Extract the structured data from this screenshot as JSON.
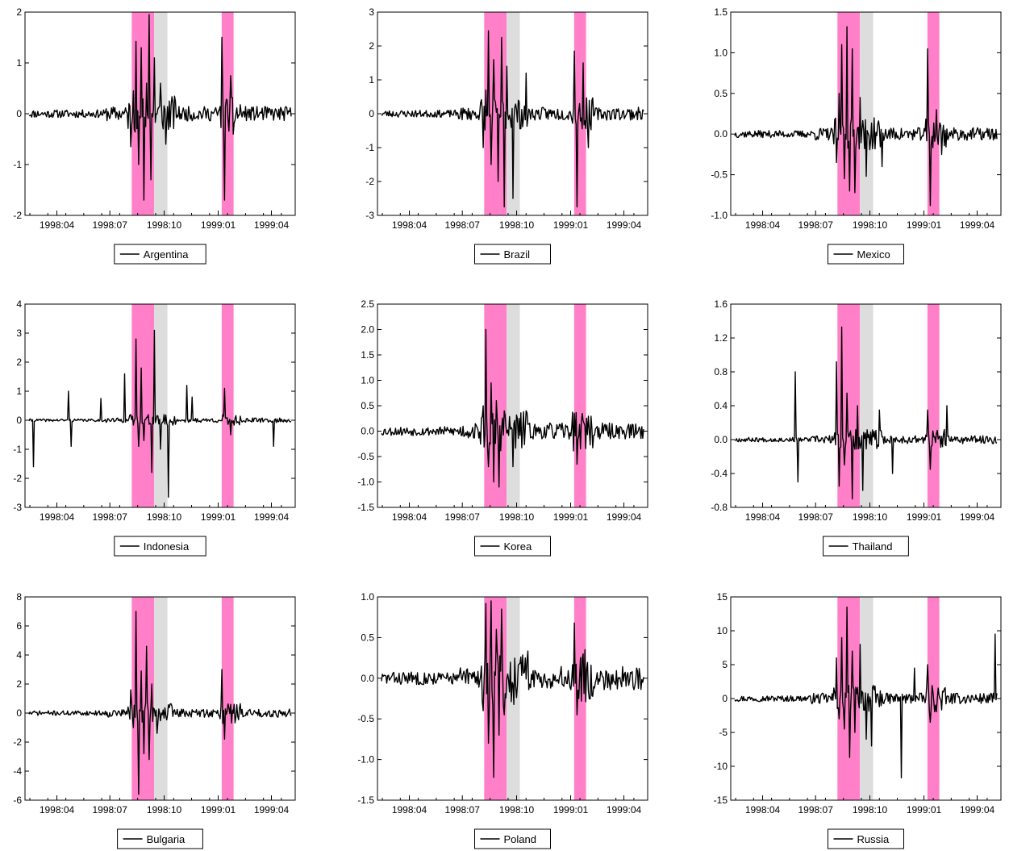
{
  "shading": {
    "pink": "#FF80C8",
    "gray": "#DDDDDD"
  },
  "line_color": "#000000",
  "x_ticks": [
    "1998:04",
    "1998:07",
    "1998:10",
    "1999:01",
    "1999:04"
  ],
  "chart_data": [
    {
      "type": "line",
      "series": [
        {
          "name": "Argentina"
        }
      ],
      "ylim": [
        -2,
        2
      ],
      "yticks": [
        "-2",
        "-1",
        "0",
        "1",
        "2"
      ],
      "seed": 11,
      "amp": 0.09,
      "spikes": [
        [
          0.39,
          -0.65
        ],
        [
          0.4,
          0.45
        ],
        [
          0.41,
          1.42
        ],
        [
          0.42,
          -1.0
        ],
        [
          0.43,
          1.3
        ],
        [
          0.44,
          -1.7
        ],
        [
          0.45,
          0.6
        ],
        [
          0.46,
          1.95
        ],
        [
          0.465,
          -1.3
        ],
        [
          0.48,
          1.1
        ],
        [
          0.5,
          0.6
        ],
        [
          0.52,
          -0.6
        ],
        [
          0.73,
          1.5
        ],
        [
          0.74,
          -1.7
        ],
        [
          0.76,
          0.75
        ],
        [
          0.77,
          -0.4
        ]
      ]
    },
    {
      "type": "line",
      "series": [
        {
          "name": "Brazil"
        }
      ],
      "ylim": [
        -3,
        3
      ],
      "yticks": [
        "-3",
        "-2",
        "-1",
        "0",
        "1",
        "2",
        "3"
      ],
      "seed": 23,
      "amp": 0.12,
      "spikes": [
        [
          0.39,
          -1.0
        ],
        [
          0.4,
          0.7
        ],
        [
          0.41,
          2.45
        ],
        [
          0.42,
          -1.5
        ],
        [
          0.43,
          1.6
        ],
        [
          0.445,
          -2.0
        ],
        [
          0.46,
          2.25
        ],
        [
          0.47,
          -2.75
        ],
        [
          0.48,
          1.4
        ],
        [
          0.5,
          -2.5
        ],
        [
          0.55,
          1.2
        ],
        [
          0.73,
          1.85
        ],
        [
          0.74,
          -2.75
        ],
        [
          0.76,
          1.5
        ],
        [
          0.78,
          -1.0
        ]
      ]
    },
    {
      "type": "line",
      "series": [
        {
          "name": "Mexico"
        }
      ],
      "ylim": [
        -1,
        1.5
      ],
      "yticks": [
        "-1.0",
        "-0.5",
        "0.0",
        "0.5",
        "1.0",
        "1.5"
      ],
      "seed": 37,
      "amp": 0.05,
      "spikes": [
        [
          0.39,
          -0.35
        ],
        [
          0.4,
          0.5
        ],
        [
          0.41,
          1.1
        ],
        [
          0.42,
          -0.55
        ],
        [
          0.43,
          1.32
        ],
        [
          0.44,
          -0.7
        ],
        [
          0.45,
          1.05
        ],
        [
          0.46,
          -0.72
        ],
        [
          0.48,
          0.45
        ],
        [
          0.5,
          -0.52
        ],
        [
          0.56,
          -0.4
        ],
        [
          0.73,
          1.05
        ],
        [
          0.74,
          -0.88
        ],
        [
          0.76,
          0.3
        ],
        [
          0.78,
          -0.25
        ]
      ]
    },
    {
      "type": "line",
      "series": [
        {
          "name": "Indonesia"
        }
      ],
      "ylim": [
        -3,
        4
      ],
      "yticks": [
        "-3",
        "-2",
        "-1",
        "0",
        "1",
        "2",
        "3",
        "4"
      ],
      "seed": 41,
      "amp": 0.05,
      "spikes": [
        [
          0.03,
          -1.6
        ],
        [
          0.16,
          1.0
        ],
        [
          0.17,
          -0.9
        ],
        [
          0.28,
          0.75
        ],
        [
          0.37,
          1.6
        ],
        [
          0.41,
          2.8
        ],
        [
          0.42,
          -0.9
        ],
        [
          0.43,
          1.8
        ],
        [
          0.44,
          -0.7
        ],
        [
          0.47,
          -1.8
        ],
        [
          0.48,
          3.1
        ],
        [
          0.5,
          -1.0
        ],
        [
          0.53,
          -2.65
        ],
        [
          0.6,
          1.2
        ],
        [
          0.62,
          0.8
        ],
        [
          0.74,
          1.1
        ],
        [
          0.76,
          -0.5
        ],
        [
          0.92,
          -0.9
        ]
      ]
    },
    {
      "type": "line",
      "series": [
        {
          "name": "Korea"
        }
      ],
      "ylim": [
        -1.5,
        2.5
      ],
      "yticks": [
        "-1.5",
        "-1.0",
        "-0.5",
        "0.0",
        "0.5",
        "1.0",
        "1.5",
        "2.0",
        "2.5"
      ],
      "seed": 53,
      "amp": 0.1,
      "spikes": [
        [
          0.39,
          0.5
        ],
        [
          0.4,
          2.0
        ],
        [
          0.41,
          -0.7
        ],
        [
          0.42,
          0.95
        ],
        [
          0.43,
          -1.0
        ],
        [
          0.44,
          0.6
        ],
        [
          0.45,
          -1.1
        ],
        [
          0.47,
          0.4
        ],
        [
          0.5,
          -0.7
        ],
        [
          0.55,
          0.4
        ],
        [
          0.73,
          0.35
        ],
        [
          0.74,
          -0.65
        ],
        [
          0.76,
          0.2
        ]
      ]
    },
    {
      "type": "line",
      "series": [
        {
          "name": "Thailand"
        }
      ],
      "ylim": [
        -0.8,
        1.6
      ],
      "yticks": [
        "-0.8",
        "-0.4",
        "0.0",
        "0.4",
        "0.8",
        "1.2",
        "1.6"
      ],
      "seed": 67,
      "amp": 0.03,
      "spikes": [
        [
          0.24,
          0.8
        ],
        [
          0.25,
          -0.5
        ],
        [
          0.39,
          0.92
        ],
        [
          0.4,
          -0.55
        ],
        [
          0.41,
          1.33
        ],
        [
          0.42,
          -0.3
        ],
        [
          0.43,
          0.55
        ],
        [
          0.45,
          -0.7
        ],
        [
          0.47,
          0.4
        ],
        [
          0.49,
          -0.6
        ],
        [
          0.55,
          0.35
        ],
        [
          0.6,
          -0.4
        ],
        [
          0.73,
          0.35
        ],
        [
          0.74,
          -0.35
        ],
        [
          0.8,
          0.4
        ]
      ]
    },
    {
      "type": "line",
      "series": [
        {
          "name": "Bulgaria"
        }
      ],
      "ylim": [
        -6,
        8
      ],
      "yticks": [
        "-6",
        "-4",
        "-2",
        "0",
        "2",
        "4",
        "6",
        "8"
      ],
      "seed": 71,
      "amp": 0.18,
      "spikes": [
        [
          0.39,
          1.6
        ],
        [
          0.4,
          -1.0
        ],
        [
          0.41,
          7.0
        ],
        [
          0.42,
          -5.6
        ],
        [
          0.43,
          2.9
        ],
        [
          0.44,
          -2.8
        ],
        [
          0.45,
          4.6
        ],
        [
          0.46,
          -3.2
        ],
        [
          0.47,
          2.0
        ],
        [
          0.49,
          -1.4
        ],
        [
          0.73,
          3.0
        ],
        [
          0.74,
          -1.8
        ],
        [
          0.76,
          0.6
        ]
      ]
    },
    {
      "type": "line",
      "series": [
        {
          "name": "Poland"
        }
      ],
      "ylim": [
        -1.5,
        1
      ],
      "yticks": [
        "-1.5",
        "-1.0",
        "-0.5",
        "0.0",
        "0.5",
        "1.0"
      ],
      "seed": 83,
      "amp": 0.09,
      "spikes": [
        [
          0.39,
          -0.4
        ],
        [
          0.4,
          0.92
        ],
        [
          0.41,
          -0.8
        ],
        [
          0.42,
          0.95
        ],
        [
          0.43,
          -1.22
        ],
        [
          0.44,
          0.6
        ],
        [
          0.45,
          -0.7
        ],
        [
          0.46,
          0.85
        ],
        [
          0.47,
          -0.45
        ],
        [
          0.73,
          0.68
        ],
        [
          0.74,
          -0.45
        ],
        [
          0.76,
          0.3
        ]
      ]
    },
    {
      "type": "line",
      "series": [
        {
          "name": "Russia"
        }
      ],
      "ylim": [
        -15,
        15
      ],
      "yticks": [
        "-15",
        "-10",
        "-5",
        "0",
        "5",
        "10",
        "15"
      ],
      "seed": 97,
      "amp": 0.5,
      "spikes": [
        [
          0.39,
          6.0
        ],
        [
          0.4,
          -3.0
        ],
        [
          0.41,
          9.0
        ],
        [
          0.42,
          -4.5
        ],
        [
          0.43,
          13.5
        ],
        [
          0.44,
          -8.7
        ],
        [
          0.45,
          7.0
        ],
        [
          0.46,
          -5.0
        ],
        [
          0.48,
          8.0
        ],
        [
          0.5,
          -6.0
        ],
        [
          0.52,
          -7.0
        ],
        [
          0.63,
          -11.7
        ],
        [
          0.68,
          4.5
        ],
        [
          0.73,
          5.0
        ],
        [
          0.74,
          -3.5
        ],
        [
          0.98,
          9.5
        ],
        [
          0.99,
          -3.0
        ]
      ]
    }
  ]
}
